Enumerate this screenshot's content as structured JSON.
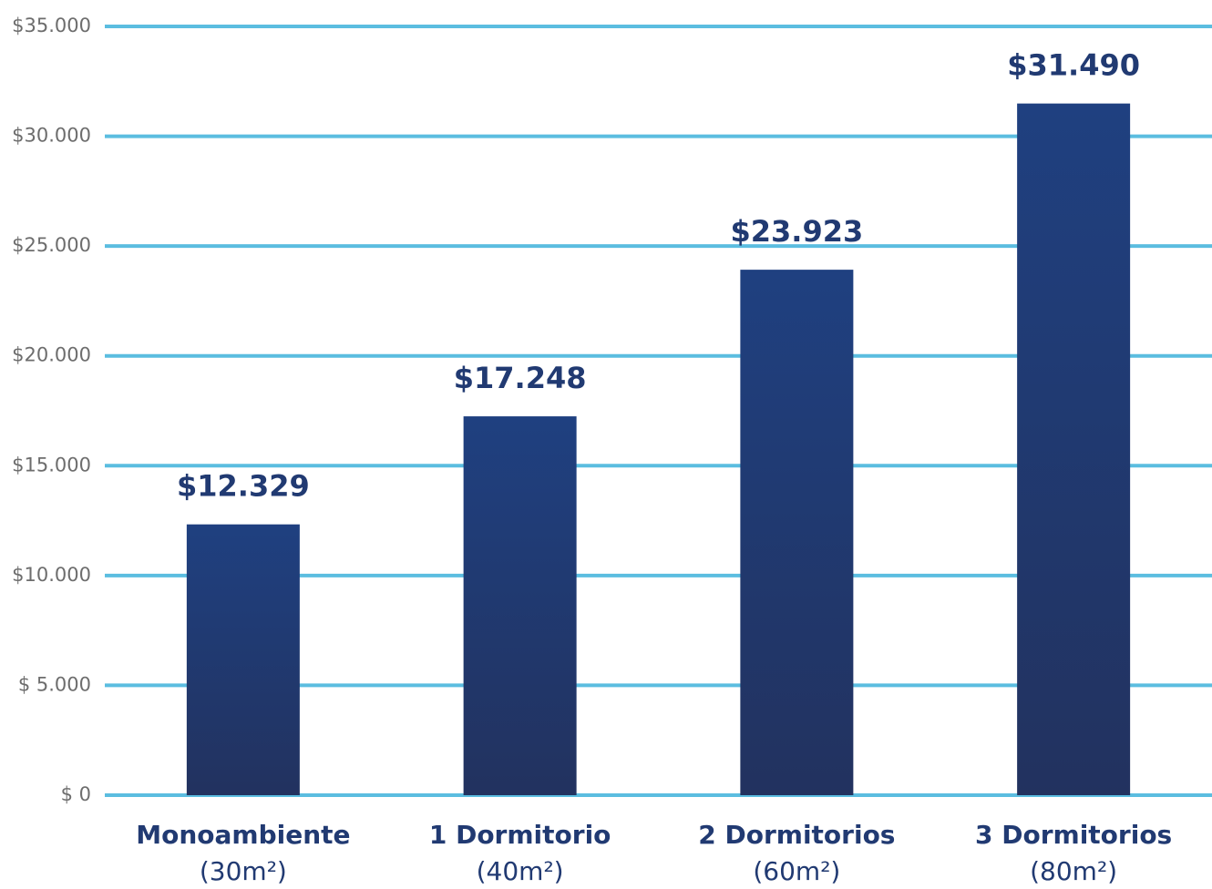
{
  "chart_data": {
    "type": "bar",
    "categories": [
      "Monoambiente",
      "1 Dormitorio",
      "2 Dormitorios",
      "3 Dormitorios"
    ],
    "category_notes": [
      "(30m²)",
      "(40m²)",
      "(60m²)",
      "(80m²)"
    ],
    "values": [
      12329,
      17248,
      23923,
      31490
    ],
    "value_labels": [
      "$12.329",
      "$17.248",
      "$23.923",
      "$31.490"
    ],
    "color": "#213a72",
    "grid_color": "#5bbde0",
    "ylim": [
      0,
      35000
    ],
    "yticks": [
      {
        "value": 0,
        "label": "$ 0"
      },
      {
        "value": 5000,
        "label": "$ 5.000"
      },
      {
        "value": 10000,
        "label": "$10.000"
      },
      {
        "value": 15000,
        "label": "$15.000"
      },
      {
        "value": 20000,
        "label": "$20.000"
      },
      {
        "value": 25000,
        "label": "$25.000"
      },
      {
        "value": 30000,
        "label": "$30.000"
      },
      {
        "value": 35000,
        "label": "$35.000"
      }
    ],
    "grid": true
  }
}
